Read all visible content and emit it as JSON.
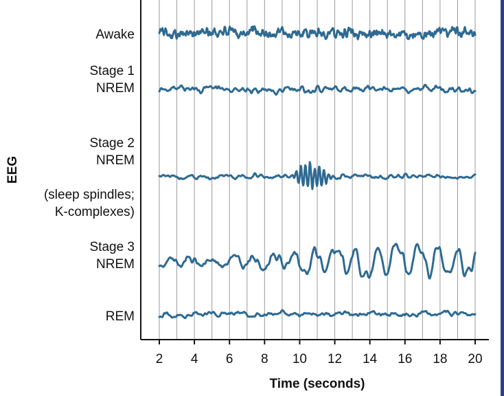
{
  "chart_data": {
    "type": "line",
    "xlabel": "Time (seconds)",
    "ylabel": "EEG",
    "xlim": [
      2,
      20
    ],
    "x_ticks": [
      2,
      4,
      6,
      8,
      10,
      12,
      14,
      16,
      18,
      20
    ],
    "grid": "vertical lines at each integer second",
    "legend": "none",
    "colors": {
      "trace": "#2e6a92",
      "grid": "#9a9a9a",
      "axis": "#111111"
    },
    "series": [
      {
        "name_lines": [
          "Awake"
        ],
        "pattern": "low-amplitude, high-frequency activity",
        "amplitude": 0.45
      },
      {
        "name_lines": [
          "Stage 1",
          "NREM"
        ],
        "pattern": "low-amplitude mixed-frequency activity",
        "amplitude": 0.25
      },
      {
        "name_lines": [
          "Stage 2",
          "NREM",
          "",
          "(sleep spindles;",
          "K-complexes)"
        ],
        "pattern": "background activity with a spindle burst between 9.5 s and 12 s",
        "amplitude": 0.2,
        "burst": {
          "start": 9.5,
          "end": 12.0,
          "amplitude": 1.0
        }
      },
      {
        "name_lines": [
          "Stage 3",
          "NREM"
        ],
        "pattern": "slow waves increasing in amplitude",
        "amplitude": 0.35,
        "slow_wave_amplitude": 1.1
      },
      {
        "name_lines": [
          "REM"
        ],
        "pattern": "low-amplitude mixed-frequency activity",
        "amplitude": 0.22
      }
    ]
  }
}
